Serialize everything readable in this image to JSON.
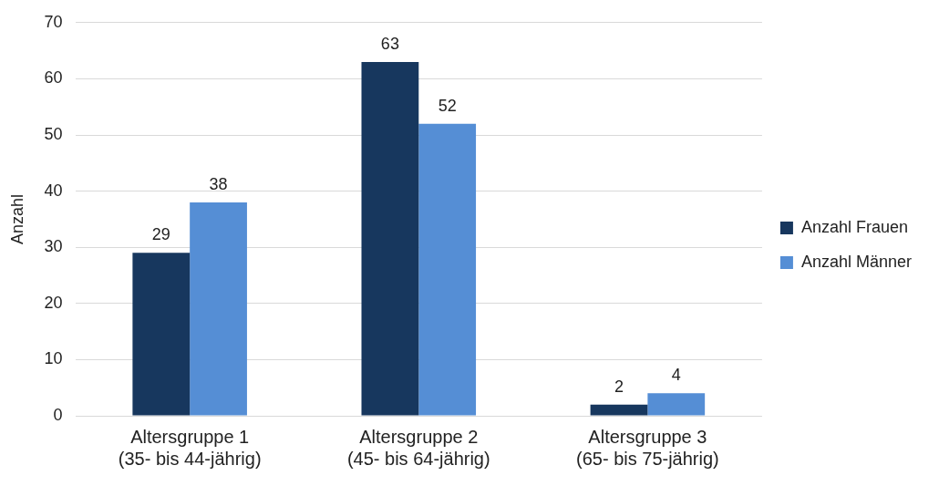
{
  "chart_data": {
    "type": "bar",
    "ylabel": "Anzahl",
    "categories": [
      "Altersgruppe 1\n(35- bis 44-jährig)",
      "Altersgruppe 2\n(45- bis 64-jährig)",
      "Altersgruppe 3\n(65- bis 75-jährig)"
    ],
    "series": [
      {
        "name": "Anzahl Frauen",
        "color": "#17375e",
        "values": [
          29,
          63,
          2
        ]
      },
      {
        "name": "Anzahl Männer",
        "color": "#558ed5",
        "values": [
          38,
          52,
          4
        ]
      }
    ],
    "ylim": [
      0,
      70
    ],
    "yticks": [
      0,
      10,
      20,
      30,
      40,
      50,
      60,
      70
    ],
    "grid": "y",
    "legend": "right",
    "data_labels": true
  }
}
